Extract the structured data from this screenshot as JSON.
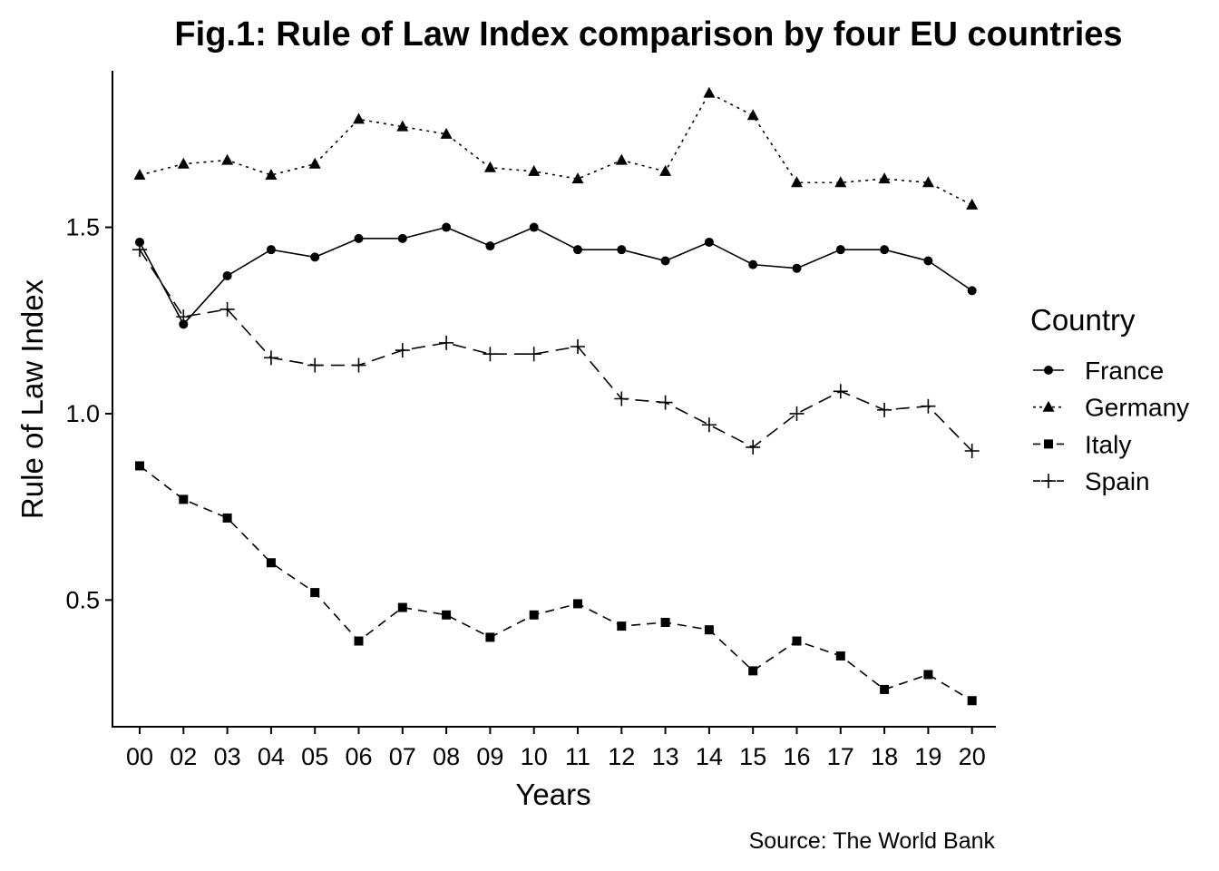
{
  "chart_data": {
    "type": "line",
    "title": "Fig.1: Rule of Law Index comparison by four EU countries",
    "xlabel": "Years",
    "ylabel": "Rule of Law Index",
    "caption": "Source: The World Bank",
    "categories": [
      "00",
      "02",
      "03",
      "04",
      "05",
      "06",
      "07",
      "08",
      "09",
      "10",
      "11",
      "12",
      "13",
      "14",
      "15",
      "16",
      "17",
      "18",
      "19",
      "20"
    ],
    "ylim": [
      0.16,
      1.92
    ],
    "yticks": [
      0.5,
      1.0,
      1.5
    ],
    "ytick_labels": [
      "0.5",
      "1.0",
      "1.5"
    ],
    "grid": false,
    "legend": {
      "title": "Country",
      "placement": "right"
    },
    "series": [
      {
        "name": "France",
        "marker": "circle",
        "dash": "solid",
        "values": [
          1.46,
          1.24,
          1.37,
          1.44,
          1.42,
          1.47,
          1.47,
          1.5,
          1.45,
          1.5,
          1.44,
          1.44,
          1.41,
          1.46,
          1.4,
          1.39,
          1.44,
          1.44,
          1.41,
          1.33
        ]
      },
      {
        "name": "Germany",
        "marker": "triangle",
        "dash": "dotted",
        "values": [
          1.64,
          1.67,
          1.68,
          1.64,
          1.67,
          1.79,
          1.77,
          1.75,
          1.66,
          1.65,
          1.63,
          1.68,
          1.65,
          1.86,
          1.8,
          1.62,
          1.62,
          1.63,
          1.62,
          1.56
        ]
      },
      {
        "name": "Italy",
        "marker": "square",
        "dash": "dashed",
        "values": [
          0.86,
          0.77,
          0.72,
          0.6,
          0.52,
          0.39,
          0.48,
          0.46,
          0.4,
          0.46,
          0.49,
          0.43,
          0.44,
          0.42,
          0.31,
          0.39,
          0.35,
          0.26,
          0.3,
          0.23
        ]
      },
      {
        "name": "Spain",
        "marker": "plus",
        "dash": "longdash",
        "values": [
          1.44,
          1.26,
          1.28,
          1.15,
          1.13,
          1.13,
          1.17,
          1.19,
          1.16,
          1.16,
          1.18,
          1.04,
          1.03,
          0.97,
          0.91,
          1.0,
          1.06,
          1.01,
          1.02,
          0.9
        ]
      }
    ]
  }
}
